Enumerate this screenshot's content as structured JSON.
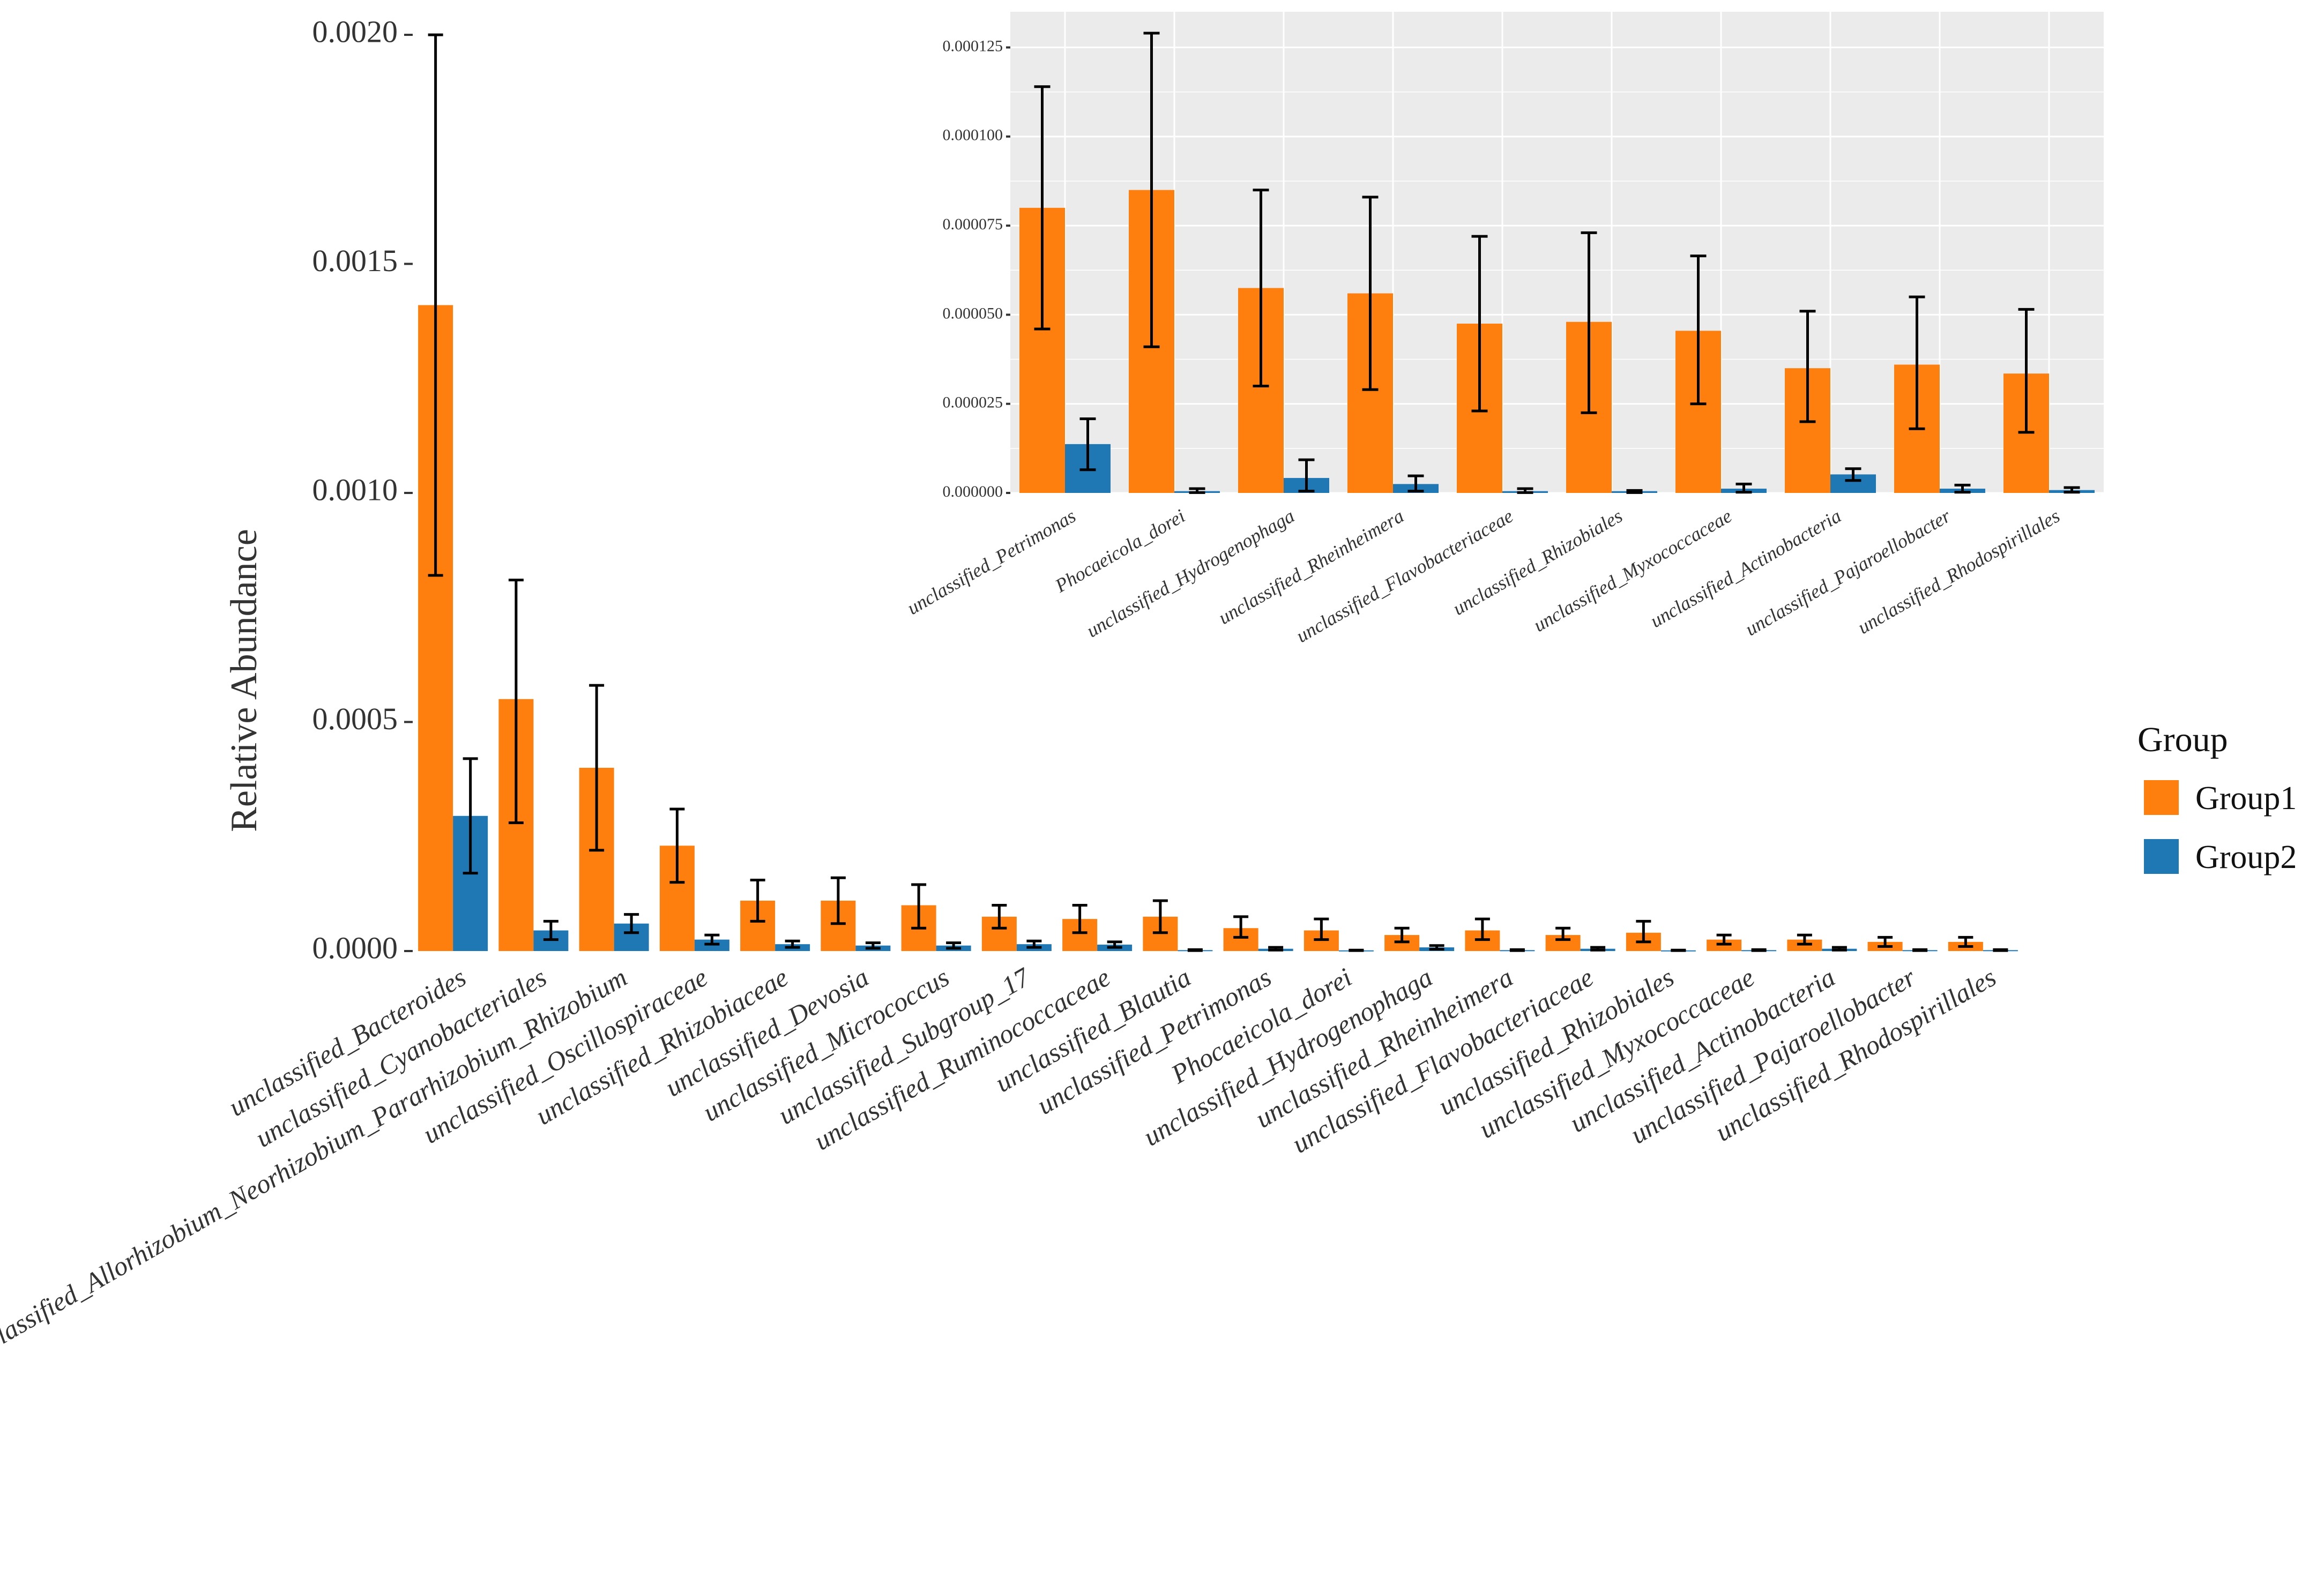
{
  "chart_data": [
    {
      "type": "bar",
      "title": "",
      "xlabel": "",
      "ylabel": "Relative Abundance",
      "ylim": [
        0,
        0.002
      ],
      "yticks": [
        "0.0000",
        "0.0005",
        "0.0010",
        "0.0015",
        "0.0020"
      ],
      "ytick_values": [
        0,
        0.0005,
        0.001,
        0.0015,
        0.002
      ],
      "grid": false,
      "categories": [
        "unclassified_Bacteroides",
        "unclassified_Cyanobacteriales",
        "Unclassified_Allorhizobium_Neorhizobium_Pararhizobium_Rhizobium",
        "unclassified_Oscillospiraceae",
        "unclassified_Rhizobiaceae",
        "unclassified_Devosia",
        "unclassified_Micrococcus",
        "unclassified_Subgroup_17",
        "unclassified_Ruminococcaceae",
        "unclassified_Blautia",
        "unclassified_Petrimonas",
        "Phocaeicola_dorei",
        "unclassified_Hydrogenophaga",
        "unclassified_Rheinheimera",
        "unclassified_Flavobacteriaceae",
        "unclassified_Rhizobiales",
        "unclassified_Myxococcaceae",
        "unclassified_Actinobacteria",
        "unclassified_Pajaroellobacter",
        "unclassified_Rhodospirillales"
      ],
      "series": [
        {
          "name": "Group1",
          "color": "#ff7f0e",
          "values": [
            0.00141,
            0.00055,
            0.0004,
            0.00023,
            0.00011,
            0.00011,
            0.0001,
            7.5e-05,
            7e-05,
            7.5e-05,
            5e-05,
            4.5e-05,
            3.5e-05,
            4.5e-05,
            3.5e-05,
            4e-05,
            2.5e-05,
            2.5e-05,
            2e-05,
            2e-05
          ],
          "err_low": [
            0.00082,
            0.00028,
            0.00022,
            0.00015,
            6.5e-05,
            6e-05,
            5e-05,
            5e-05,
            4e-05,
            4e-05,
            3e-05,
            2.5e-05,
            2e-05,
            2.5e-05,
            2.5e-05,
            2e-05,
            1.5e-05,
            1.5e-05,
            1e-05,
            1e-05
          ],
          "err_high": [
            0.002,
            0.00081,
            0.00058,
            0.00031,
            0.000155,
            0.00016,
            0.000145,
            0.0001,
            0.0001,
            0.00011,
            7.5e-05,
            7e-05,
            5e-05,
            7e-05,
            5e-05,
            6.5e-05,
            3.5e-05,
            3.5e-05,
            3e-05,
            3e-05
          ]
        },
        {
          "name": "Group2",
          "color": "#1f77b4",
          "values": [
            0.000295,
            4.5e-05,
            6e-05,
            2.5e-05,
            1.5e-05,
            1.2e-05,
            1.2e-05,
            1.5e-05,
            1.4e-05,
            2e-06,
            5e-06,
            1.5e-06,
            8e-06,
            2e-06,
            5e-06,
            1.5e-06,
            2e-06,
            5e-06,
            2e-06,
            2e-06
          ],
          "err_low": [
            0.00017,
            2.5e-05,
            4e-05,
            1.5e-05,
            8e-06,
            6e-06,
            6e-06,
            8e-06,
            8e-06,
            1e-06,
            2e-06,
            1e-06,
            4e-06,
            1e-06,
            2e-06,
            1e-06,
            1e-06,
            2e-06,
            1e-06,
            1e-06
          ],
          "err_high": [
            0.00042,
            6.5e-05,
            8e-05,
            3.5e-05,
            2.2e-05,
            1.8e-05,
            1.8e-05,
            2.2e-05,
            2e-05,
            3e-06,
            8e-06,
            2e-06,
            1.2e-05,
            3e-06,
            8e-06,
            2e-06,
            3e-06,
            8e-06,
            3e-06,
            3e-06
          ]
        }
      ]
    },
    {
      "type": "bar",
      "title": "",
      "xlabel": "",
      "ylabel": "",
      "ylim": [
        0,
        0.000135
      ],
      "yticks": [
        "0.000000",
        "0.000025",
        "0.000050",
        "0.000075",
        "0.000100",
        "0.000125"
      ],
      "ytick_values": [
        0,
        2.5e-05,
        5e-05,
        7.5e-05,
        0.0001,
        0.000125
      ],
      "grid": true,
      "panel_background": "#ebebeb",
      "categories": [
        "unclassified_Petrimonas",
        "Phocaeicola_dorei",
        "unclassified_Hydrogenophaga",
        "unclassified_Rheinheimera",
        "unclassified_Flavobacteriaceae",
        "unclassified_Rhizobiales",
        "unclassified_Myxococcaceae",
        "unclassified_Actinobacteria",
        "unclassified_Pajaroellobacter",
        "unclassified_Rhodospirillales"
      ],
      "series": [
        {
          "name": "Group1",
          "color": "#ff7f0e",
          "values": [
            8e-05,
            8.5e-05,
            5.75e-05,
            5.6e-05,
            4.75e-05,
            4.8e-05,
            4.55e-05,
            3.5e-05,
            3.6e-05,
            3.35e-05
          ],
          "err_low": [
            4.6e-05,
            4.1e-05,
            3e-05,
            2.9e-05,
            2.3e-05,
            2.25e-05,
            2.5e-05,
            2e-05,
            1.8e-05,
            1.7e-05
          ],
          "err_high": [
            0.000114,
            0.000129,
            8.5e-05,
            8.3e-05,
            7.2e-05,
            7.3e-05,
            6.65e-05,
            5.1e-05,
            5.5e-05,
            5.15e-05
          ]
        },
        {
          "name": "Group2",
          "color": "#1f77b4",
          "values": [
            1.37e-05,
            5e-07,
            4.2e-06,
            2.5e-06,
            5e-07,
            5e-07,
            1.2e-06,
            5.2e-06,
            1.2e-06,
            8e-07
          ],
          "err_low": [
            6.5e-06,
            1e-07,
            5e-07,
            5e-07,
            1e-07,
            1e-07,
            2e-07,
            3.5e-06,
            2e-07,
            2e-07
          ],
          "err_high": [
            2.08e-05,
            1.2e-06,
            9.3e-06,
            4.8e-06,
            1.2e-06,
            7e-07,
            2.5e-06,
            6.8e-06,
            2.2e-06,
            1.5e-06
          ]
        }
      ]
    }
  ],
  "legend": {
    "title": "Group",
    "position": "right",
    "items": [
      {
        "label": "Group1",
        "color": "#ff7f0e"
      },
      {
        "label": "Group2",
        "color": "#1f77b4"
      }
    ]
  }
}
